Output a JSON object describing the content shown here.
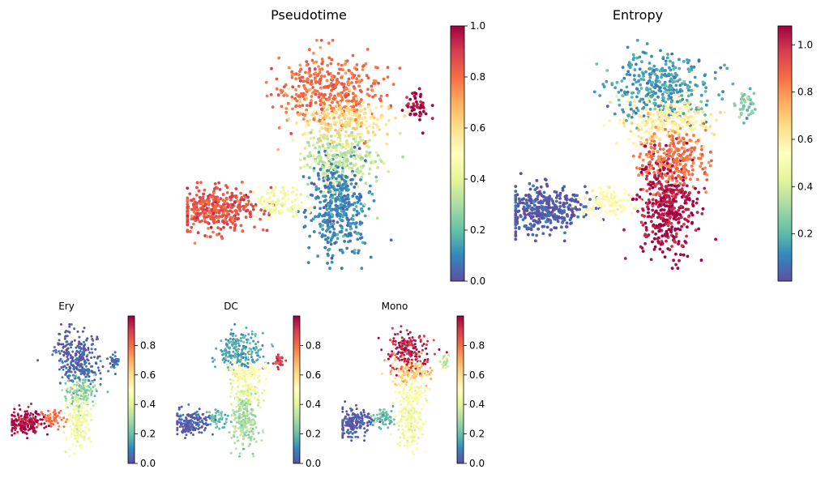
{
  "colormap": {
    "name": "Spectral_r",
    "stops": [
      "#5e4fa2",
      "#3288bd",
      "#66c2a5",
      "#abdda4",
      "#e6f598",
      "#ffffbf",
      "#fee08b",
      "#fdae61",
      "#f46d43",
      "#d53e4f",
      "#9e0142"
    ]
  },
  "chart_data": [
    {
      "type": "scatter",
      "title": "Pseudotime",
      "colorbar": {
        "range": [
          0,
          1.0
        ],
        "ticks": [
          "0.0",
          "0.2",
          "0.4",
          "0.6",
          "0.8",
          "1.0"
        ],
        "tick_values": [
          0,
          0.2,
          0.4,
          0.6,
          0.8,
          1.0
        ]
      },
      "color_by_region": {
        "lower_stem": 0.1,
        "middle_band": 0.35,
        "upper_band": 0.6,
        "top_lobe": 0.8,
        "right_tip": 0.98,
        "left_blob": 0.85,
        "bridge": 0.45
      }
    },
    {
      "type": "scatter",
      "title": "Entropy",
      "colorbar": {
        "range": [
          0,
          1.08
        ],
        "ticks": [
          "0.2",
          "0.4",
          "0.6",
          "0.8",
          "1.0"
        ],
        "tick_values": [
          0.2,
          0.4,
          0.6,
          0.8,
          1.0
        ]
      },
      "color_by_region": {
        "lower_stem": 1.05,
        "middle_band": 0.85,
        "upper_band": 0.6,
        "top_lobe": 0.15,
        "right_tip": 0.25,
        "left_blob": 0.02,
        "bridge": 0.55
      }
    },
    {
      "type": "scatter",
      "title": "Ery",
      "colorbar": {
        "range": [
          0,
          1.0
        ],
        "ticks": [
          "0.0",
          "0.2",
          "0.4",
          "0.6",
          "0.8"
        ],
        "tick_values": [
          0,
          0.2,
          0.4,
          0.6,
          0.8
        ]
      },
      "color_by_region": {
        "lower_stem": 0.45,
        "middle_band": 0.25,
        "upper_band": 0.05,
        "top_lobe": 0.02,
        "right_tip": 0.05,
        "left_blob": 0.98,
        "bridge": 0.8
      }
    },
    {
      "type": "scatter",
      "title": "DC",
      "colorbar": {
        "range": [
          0,
          1.0
        ],
        "ticks": [
          "0.0",
          "0.2",
          "0.4",
          "0.6",
          "0.8"
        ],
        "tick_values": [
          0,
          0.2,
          0.4,
          0.6,
          0.8
        ]
      },
      "color_by_region": {
        "lower_stem": 0.3,
        "middle_band": 0.42,
        "upper_band": 0.5,
        "top_lobe": 0.15,
        "right_tip": 0.9,
        "left_blob": 0.02,
        "bridge": 0.2
      }
    },
    {
      "type": "scatter",
      "title": "Mono",
      "colorbar": {
        "range": [
          0,
          1.0
        ],
        "ticks": [
          "0.0",
          "0.2",
          "0.4",
          "0.6",
          "0.8"
        ],
        "tick_values": [
          0,
          0.2,
          0.4,
          0.6,
          0.8
        ]
      },
      "color_by_region": {
        "lower_stem": 0.45,
        "middle_band": 0.5,
        "upper_band": 0.65,
        "top_lobe": 0.95,
        "right_tip": 0.35,
        "left_blob": 0.02,
        "bridge": 0.2
      }
    }
  ]
}
